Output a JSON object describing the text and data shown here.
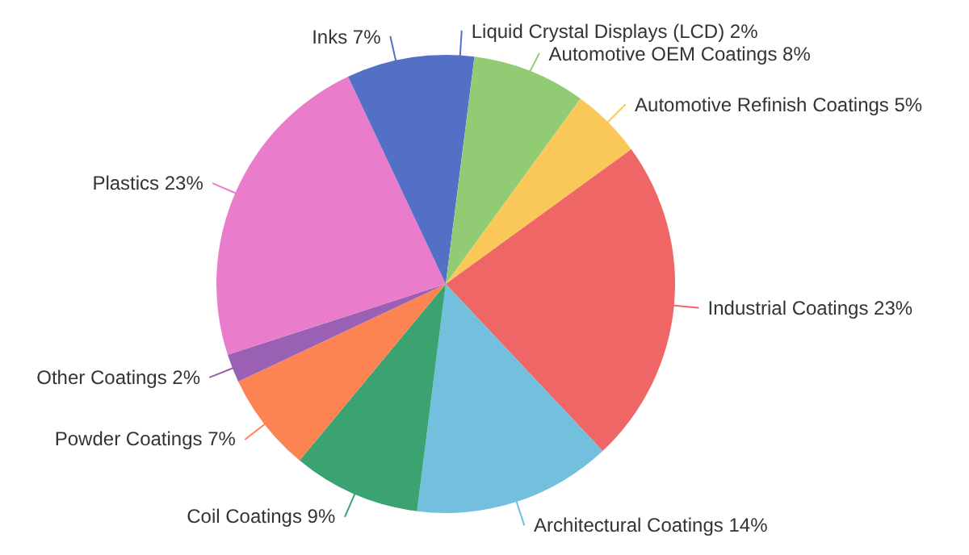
{
  "chart_data": {
    "type": "pie",
    "categories": [
      "Liquid Crystal Displays (LCD)",
      "Automotive OEM Coatings",
      "Automotive Refinish Coatings",
      "Industrial Coatings",
      "Architectural Coatings",
      "Coil Coatings",
      "Powder Coatings",
      "Other Coatings",
      "Plastics",
      "Inks"
    ],
    "values": [
      2,
      8,
      5,
      23,
      14,
      9,
      7,
      2,
      23,
      7
    ],
    "value_labels": [
      "2%",
      "8%",
      "5%",
      "23%",
      "14%",
      "9%",
      "7%",
      "2%",
      "23%",
      "7%"
    ],
    "colors": [
      "#5470c6",
      "#91cc75",
      "#fac858",
      "#ee6666",
      "#73c0de",
      "#3ba272",
      "#fc8452",
      "#9a60b4",
      "#ea7ccc",
      "#5470c6"
    ]
  }
}
